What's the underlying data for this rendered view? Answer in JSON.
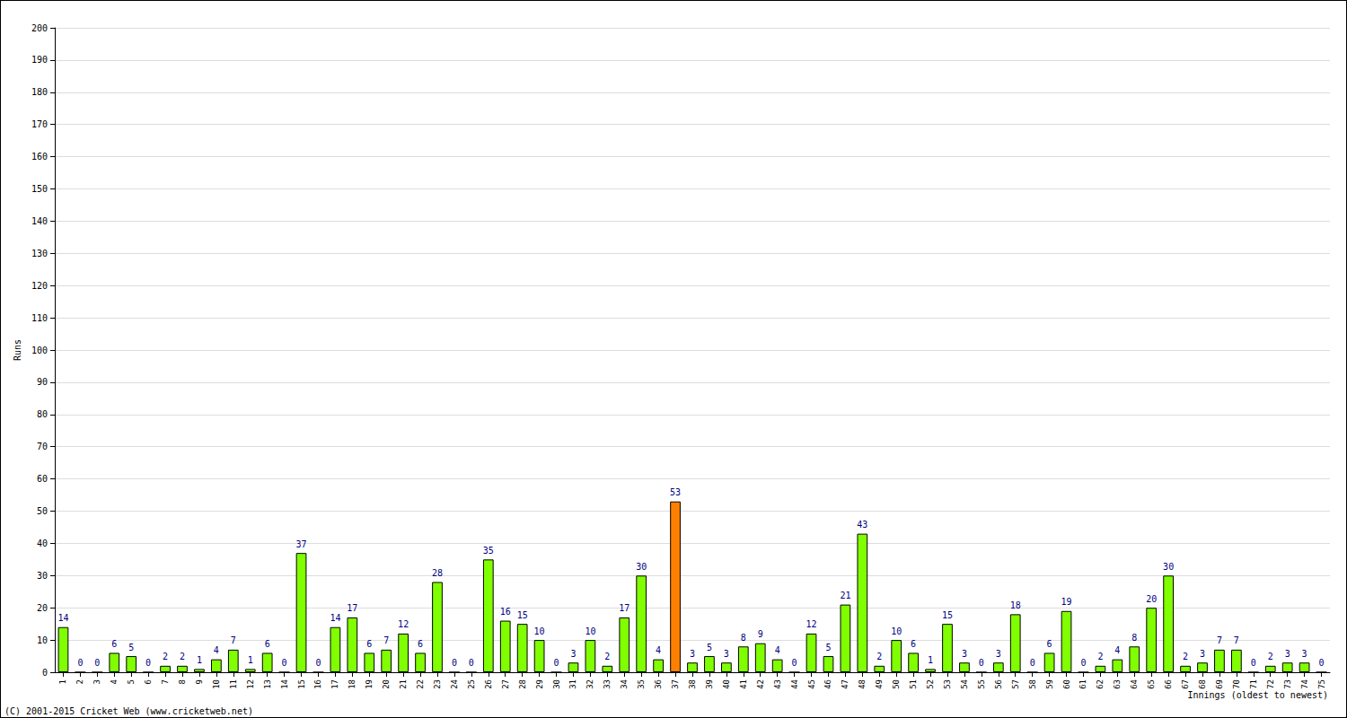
{
  "chart_data": {
    "type": "bar",
    "y_label": "Runs",
    "x_label": "Innings (oldest to newest)",
    "annotation": "(C) 2001-2015 Cricket Web (www.cricketweb.net)",
    "categories": [
      1,
      2,
      3,
      4,
      5,
      6,
      7,
      8,
      9,
      10,
      11,
      12,
      13,
      14,
      15,
      16,
      17,
      18,
      19,
      20,
      21,
      22,
      23,
      24,
      25,
      26,
      27,
      28,
      29,
      30,
      31,
      32,
      33,
      34,
      35,
      36,
      37,
      38,
      39,
      40,
      41,
      42,
      43,
      44,
      45,
      46,
      47,
      48,
      49,
      50,
      51,
      52,
      53,
      54,
      55,
      56,
      57,
      58,
      59,
      60,
      61,
      62,
      63,
      64,
      65,
      66,
      67,
      68,
      69,
      70,
      71,
      72,
      73,
      74,
      75
    ],
    "values": [
      14,
      0,
      0,
      6,
      5,
      0,
      2,
      2,
      1,
      4,
      7,
      1,
      6,
      0,
      37,
      0,
      14,
      17,
      6,
      7,
      12,
      6,
      28,
      0,
      0,
      35,
      16,
      15,
      10,
      0,
      3,
      10,
      2,
      17,
      30,
      4,
      53,
      3,
      5,
      3,
      8,
      9,
      4,
      0,
      12,
      5,
      21,
      43,
      2,
      10,
      6,
      1,
      15,
      3,
      0,
      3,
      18,
      0,
      6,
      19,
      0,
      2,
      4,
      8,
      20,
      30,
      2,
      3,
      7,
      7,
      0,
      2,
      3,
      3,
      0
    ],
    "colors": [
      "#80ff00",
      "#80ff00",
      "#80ff00",
      "#80ff00",
      "#80ff00",
      "#80ff00",
      "#80ff00",
      "#80ff00",
      "#80ff00",
      "#80ff00",
      "#80ff00",
      "#80ff00",
      "#80ff00",
      "#80ff00",
      "#80ff00",
      "#80ff00",
      "#80ff00",
      "#80ff00",
      "#80ff00",
      "#80ff00",
      "#80ff00",
      "#80ff00",
      "#80ff00",
      "#80ff00",
      "#80ff00",
      "#80ff00",
      "#80ff00",
      "#80ff00",
      "#80ff00",
      "#80ff00",
      "#80ff00",
      "#80ff00",
      "#80ff00",
      "#80ff00",
      "#80ff00",
      "#80ff00",
      "#ff8000",
      "#80ff00",
      "#80ff00",
      "#80ff00",
      "#80ff00",
      "#80ff00",
      "#80ff00",
      "#80ff00",
      "#80ff00",
      "#80ff00",
      "#80ff00",
      "#80ff00",
      "#80ff00",
      "#80ff00",
      "#80ff00",
      "#80ff00",
      "#80ff00",
      "#80ff00",
      "#80ff00",
      "#80ff00",
      "#80ff00",
      "#80ff00",
      "#80ff00",
      "#80ff00",
      "#80ff00",
      "#80ff00",
      "#80ff00",
      "#80ff00",
      "#80ff00",
      "#80ff00",
      "#80ff00",
      "#80ff00",
      "#80ff00",
      "#80ff00",
      "#80ff00",
      "#80ff00",
      "#80ff00",
      "#80ff00",
      "#80ff00"
    ],
    "ylim": [
      0,
      200
    ],
    "yticks": [
      0,
      10,
      20,
      30,
      40,
      50,
      60,
      70,
      80,
      90,
      100,
      110,
      120,
      130,
      140,
      150,
      160,
      170,
      180,
      190,
      200
    ],
    "grid": true,
    "data_labels": true
  }
}
